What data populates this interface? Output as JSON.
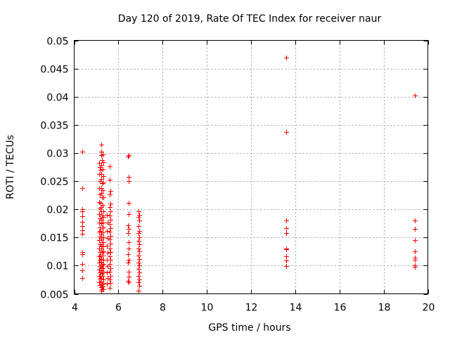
{
  "chart_data": {
    "type": "scatter",
    "title": "Day 120 of 2019, Rate Of TEC Index for receiver naur",
    "xlabel": "GPS time / hours",
    "ylabel": "ROTI / TECUs",
    "xlim": [
      4,
      20
    ],
    "ylim": [
      0.005,
      0.05
    ],
    "xticks": [
      4,
      6,
      8,
      10,
      12,
      14,
      16,
      18,
      20
    ],
    "yticks": [
      0.005,
      0.01,
      0.015,
      0.02,
      0.025,
      0.03,
      0.035,
      0.04,
      0.045,
      0.05
    ],
    "xtick_labels": [
      "4",
      "6",
      "8",
      "10",
      "12",
      "14",
      "16",
      "18",
      "20"
    ],
    "ytick_labels": [
      "0.005",
      "0.01",
      "0.015",
      "0.02",
      "0.025",
      "0.03",
      "0.035",
      "0.04",
      "0.045",
      "0.05"
    ],
    "grid": true,
    "marker": "+",
    "color": "#ff0000",
    "series": [
      {
        "name": "ROTI",
        "points": [
          [
            4.38,
            0.0302
          ],
          [
            4.38,
            0.0237
          ],
          [
            4.38,
            0.02
          ],
          [
            4.38,
            0.0196
          ],
          [
            4.38,
            0.0188
          ],
          [
            4.38,
            0.0178
          ],
          [
            4.38,
            0.017
          ],
          [
            4.38,
            0.0163
          ],
          [
            4.38,
            0.0157
          ],
          [
            4.38,
            0.0124
          ],
          [
            4.38,
            0.0121
          ],
          [
            4.38,
            0.0103
          ],
          [
            4.38,
            0.0092
          ],
          [
            4.38,
            0.0078
          ],
          [
            5.12,
            0.0282
          ],
          [
            5.15,
            0.0275
          ],
          [
            5.14,
            0.0263
          ],
          [
            5.16,
            0.025
          ],
          [
            5.13,
            0.0238
          ],
          [
            5.17,
            0.0226
          ],
          [
            5.14,
            0.0213
          ],
          [
            5.16,
            0.0201
          ],
          [
            5.12,
            0.0192
          ],
          [
            5.15,
            0.0184
          ],
          [
            5.13,
            0.0176
          ],
          [
            5.17,
            0.0168
          ],
          [
            5.14,
            0.016
          ],
          [
            5.16,
            0.0152
          ],
          [
            5.12,
            0.0145
          ],
          [
            5.15,
            0.0138
          ],
          [
            5.13,
            0.0131
          ],
          [
            5.17,
            0.0124
          ],
          [
            5.14,
            0.0117
          ],
          [
            5.16,
            0.0111
          ],
          [
            5.12,
            0.0105
          ],
          [
            5.15,
            0.0099
          ],
          [
            5.13,
            0.0093
          ],
          [
            5.17,
            0.0088
          ],
          [
            5.14,
            0.0082
          ],
          [
            5.16,
            0.0077
          ],
          [
            5.13,
            0.0071
          ],
          [
            5.15,
            0.0066
          ],
          [
            5.22,
            0.0315
          ],
          [
            5.24,
            0.0303
          ],
          [
            5.21,
            0.0296
          ],
          [
            5.25,
            0.0287
          ],
          [
            5.23,
            0.0279
          ],
          [
            5.2,
            0.027
          ],
          [
            5.24,
            0.0262
          ],
          [
            5.22,
            0.0254
          ],
          [
            5.26,
            0.0246
          ],
          [
            5.21,
            0.0238
          ],
          [
            5.23,
            0.0229
          ],
          [
            5.25,
            0.0221
          ],
          [
            5.2,
            0.0212
          ],
          [
            5.24,
            0.0204
          ],
          [
            5.22,
            0.0196
          ],
          [
            5.26,
            0.0189
          ],
          [
            5.21,
            0.0182
          ],
          [
            5.23,
            0.0175
          ],
          [
            5.25,
            0.0168
          ],
          [
            5.2,
            0.0161
          ],
          [
            5.24,
            0.0155
          ],
          [
            5.22,
            0.0148
          ],
          [
            5.26,
            0.0142
          ],
          [
            5.21,
            0.0136
          ],
          [
            5.23,
            0.013
          ],
          [
            5.25,
            0.0124
          ],
          [
            5.2,
            0.0118
          ],
          [
            5.24,
            0.0112
          ],
          [
            5.22,
            0.0107
          ],
          [
            5.26,
            0.0102
          ],
          [
            5.21,
            0.0097
          ],
          [
            5.23,
            0.0092
          ],
          [
            5.25,
            0.0087
          ],
          [
            5.2,
            0.0082
          ],
          [
            5.24,
            0.0077
          ],
          [
            5.22,
            0.0072
          ],
          [
            5.26,
            0.0067
          ],
          [
            5.23,
            0.0062
          ],
          [
            5.25,
            0.0058
          ],
          [
            5.22,
            0.0055
          ],
          [
            5.3,
            0.0298
          ],
          [
            5.32,
            0.0284
          ],
          [
            5.29,
            0.0271
          ],
          [
            5.33,
            0.0259
          ],
          [
            5.31,
            0.0247
          ],
          [
            5.3,
            0.0234
          ],
          [
            5.32,
            0.0221
          ],
          [
            5.29,
            0.0208
          ],
          [
            5.33,
            0.0196
          ],
          [
            5.31,
            0.0186
          ],
          [
            5.3,
            0.0177
          ],
          [
            5.32,
            0.0168
          ],
          [
            5.29,
            0.0159
          ],
          [
            5.33,
            0.015
          ],
          [
            5.31,
            0.0142
          ],
          [
            5.3,
            0.0134
          ],
          [
            5.32,
            0.0126
          ],
          [
            5.29,
            0.0118
          ],
          [
            5.33,
            0.011
          ],
          [
            5.31,
            0.0103
          ],
          [
            5.3,
            0.0096
          ],
          [
            5.32,
            0.0089
          ],
          [
            5.29,
            0.0082
          ],
          [
            5.33,
            0.0076
          ],
          [
            5.31,
            0.0069
          ],
          [
            5.3,
            0.0063
          ],
          [
            5.32,
            0.0058
          ],
          [
            5.48,
            0.019
          ],
          [
            5.5,
            0.0176
          ],
          [
            5.49,
            0.0162
          ],
          [
            5.51,
            0.0149
          ],
          [
            5.48,
            0.0136
          ],
          [
            5.5,
            0.0123
          ],
          [
            5.49,
            0.0111
          ],
          [
            5.51,
            0.0099
          ],
          [
            5.48,
            0.0088
          ],
          [
            5.5,
            0.0078
          ],
          [
            5.49,
            0.0068
          ],
          [
            5.62,
            0.0276
          ],
          [
            5.62,
            0.0252
          ],
          [
            5.63,
            0.0233
          ],
          [
            5.62,
            0.0226
          ],
          [
            5.63,
            0.021
          ],
          [
            5.62,
            0.0204
          ],
          [
            5.63,
            0.0196
          ],
          [
            5.62,
            0.0189
          ],
          [
            5.63,
            0.0181
          ],
          [
            5.62,
            0.0174
          ],
          [
            5.63,
            0.0167
          ],
          [
            5.62,
            0.016
          ],
          [
            5.63,
            0.0153
          ],
          [
            5.62,
            0.0146
          ],
          [
            5.63,
            0.0139
          ],
          [
            5.62,
            0.0131
          ],
          [
            5.63,
            0.0124
          ],
          [
            5.62,
            0.0117
          ],
          [
            5.63,
            0.011
          ],
          [
            5.62,
            0.0103
          ],
          [
            5.63,
            0.0096
          ],
          [
            5.62,
            0.0089
          ],
          [
            5.63,
            0.0082
          ],
          [
            5.62,
            0.0075
          ],
          [
            5.63,
            0.0069
          ],
          [
            5.62,
            0.0061
          ],
          [
            6.45,
            0.0296
          ],
          [
            6.42,
            0.0294
          ],
          [
            6.45,
            0.0257
          ],
          [
            6.45,
            0.025
          ],
          [
            6.45,
            0.0212
          ],
          [
            6.45,
            0.0192
          ],
          [
            6.42,
            0.0171
          ],
          [
            6.45,
            0.0165
          ],
          [
            6.42,
            0.0158
          ],
          [
            6.45,
            0.0142
          ],
          [
            6.45,
            0.013
          ],
          [
            6.42,
            0.012
          ],
          [
            6.45,
            0.0111
          ],
          [
            6.42,
            0.0106
          ],
          [
            6.45,
            0.0089
          ],
          [
            6.45,
            0.008
          ],
          [
            6.42,
            0.0073
          ],
          [
            6.45,
            0.0071
          ],
          [
            6.92,
            0.0196
          ],
          [
            6.95,
            0.019
          ],
          [
            6.92,
            0.0186
          ],
          [
            6.95,
            0.018
          ],
          [
            6.92,
            0.017
          ],
          [
            6.95,
            0.0161
          ],
          [
            6.92,
            0.0158
          ],
          [
            6.95,
            0.015
          ],
          [
            6.92,
            0.0144
          ],
          [
            6.95,
            0.0138
          ],
          [
            6.92,
            0.013
          ],
          [
            6.95,
            0.0126
          ],
          [
            6.92,
            0.0118
          ],
          [
            6.95,
            0.0112
          ],
          [
            6.92,
            0.0106
          ],
          [
            6.95,
            0.01
          ],
          [
            6.92,
            0.0094
          ],
          [
            6.95,
            0.0088
          ],
          [
            6.92,
            0.0082
          ],
          [
            6.95,
            0.0076
          ],
          [
            6.92,
            0.007
          ],
          [
            6.95,
            0.0064
          ],
          [
            6.92,
            0.0056
          ],
          [
            13.6,
            0.047
          ],
          [
            13.6,
            0.0337
          ],
          [
            13.6,
            0.018
          ],
          [
            13.6,
            0.0166
          ],
          [
            13.6,
            0.0158
          ],
          [
            13.6,
            0.0131
          ],
          [
            13.6,
            0.0129
          ],
          [
            13.6,
            0.0117
          ],
          [
            13.6,
            0.0109
          ],
          [
            13.6,
            0.0099
          ],
          [
            19.4,
            0.0402
          ],
          [
            19.4,
            0.018
          ],
          [
            19.4,
            0.0165
          ],
          [
            19.4,
            0.0145
          ],
          [
            19.4,
            0.0126
          ],
          [
            19.4,
            0.0114
          ],
          [
            19.4,
            0.011
          ],
          [
            19.4,
            0.0101
          ],
          [
            19.4,
            0.0098
          ]
        ]
      }
    ]
  }
}
